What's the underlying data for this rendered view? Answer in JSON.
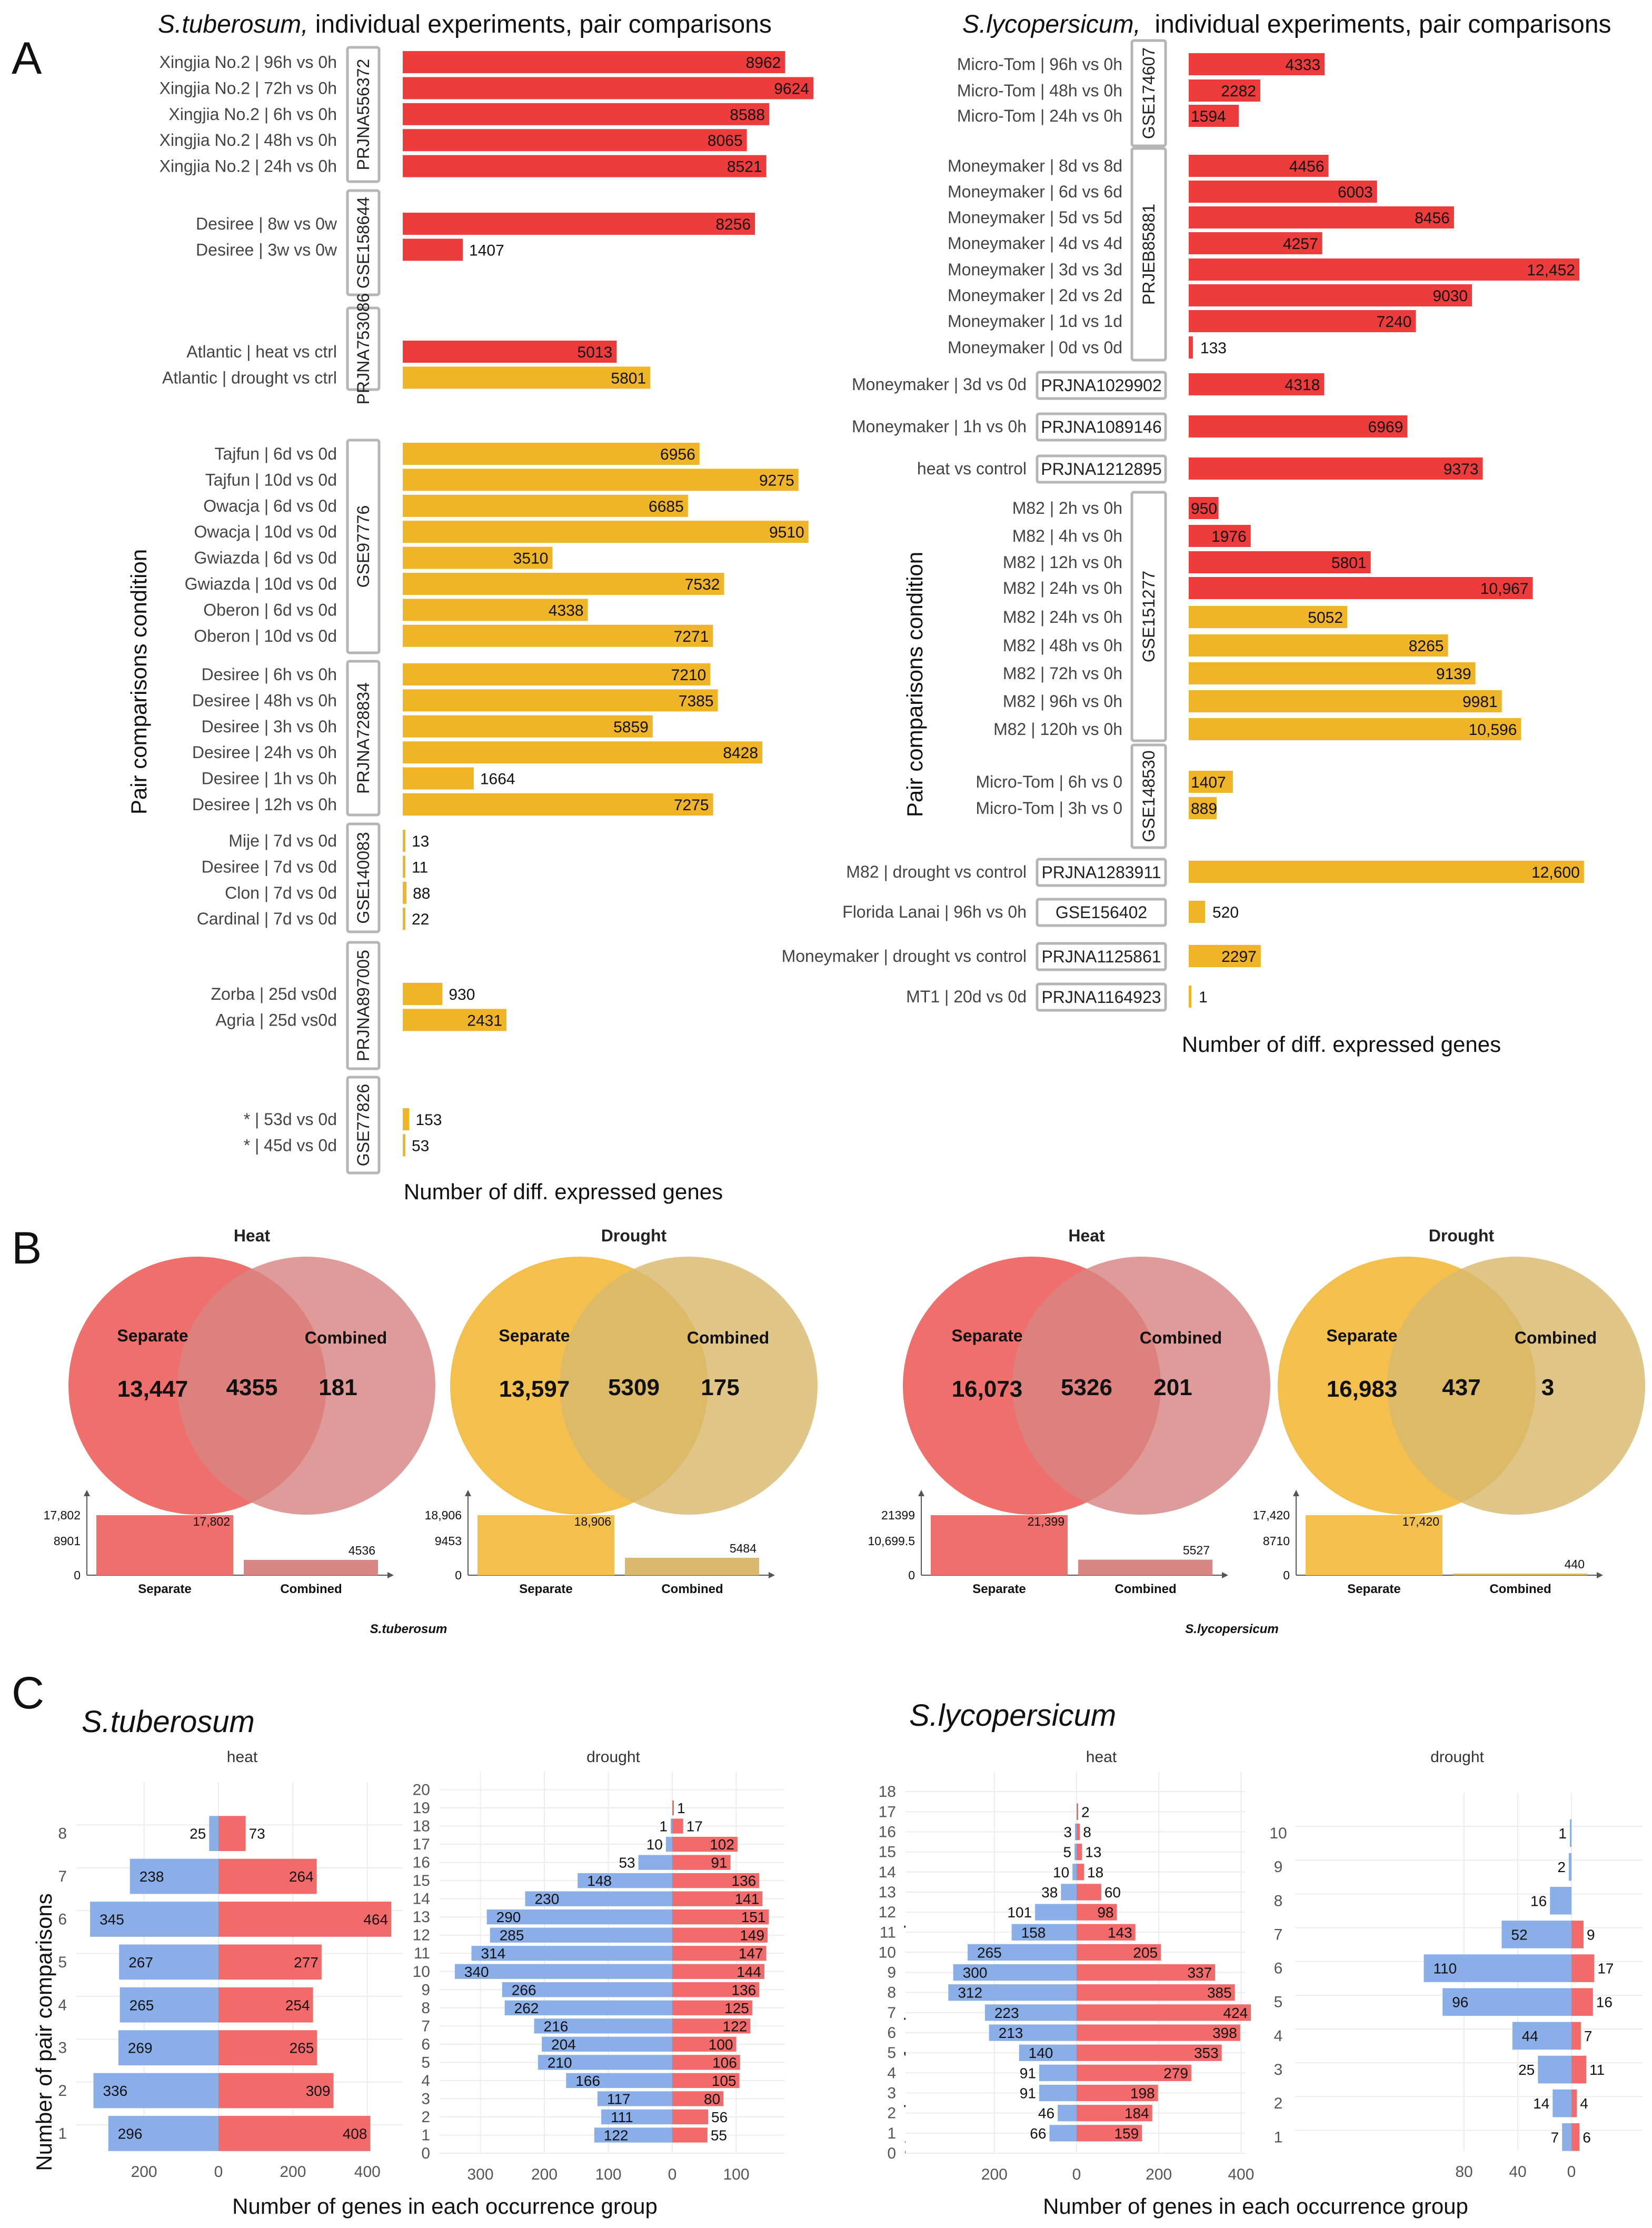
{
  "panels": {
    "A": "A",
    "B": "B",
    "C": "C"
  },
  "panelA": {
    "left": {
      "title_species": "S.tuberosum,",
      "title_rest": " individual experiments, pair comparisons",
      "xlabel": "Number of diff. expressed genes",
      "ylabel": "Pair comparisons condition",
      "groups": [
        {
          "accession": "PRJNA556372",
          "rows": [
            {
              "label": "Xingjia No.2 | 96h vs 0h",
              "value": 8962,
              "stress": "heat"
            },
            {
              "label": "Xingjia No.2 | 72h vs 0h",
              "value": 9624,
              "stress": "heat"
            },
            {
              "label": "Xingjia No.2 | 6h vs 0h",
              "value": 8588,
              "stress": "heat"
            },
            {
              "label": "Xingjia No.2 | 48h vs 0h",
              "value": 8065,
              "stress": "heat"
            },
            {
              "label": "Xingjia No.2 | 24h vs 0h",
              "value": 8521,
              "stress": "heat"
            }
          ]
        },
        {
          "accession": "GSE158644",
          "rows": [
            {
              "label": "Desiree | 8w vs 0w",
              "value": 8256,
              "stress": "heat"
            },
            {
              "label": "Desiree | 3w vs 0w",
              "value": 1407,
              "stress": "heat"
            }
          ]
        },
        {
          "accession": "PRJNA753086",
          "rows": [
            {
              "label": "Atlantic | heat vs ctrl",
              "value": 5013,
              "stress": "heat"
            },
            {
              "label": "Atlantic | drought vs ctrl",
              "value": 5801,
              "stress": "drought"
            }
          ]
        },
        {
          "accession": "GSE97776",
          "rows": [
            {
              "label": "Tajfun | 6d vs 0d",
              "value": 6956,
              "stress": "drought"
            },
            {
              "label": "Tajfun | 10d vs 0d",
              "value": 9275,
              "stress": "drought"
            },
            {
              "label": "Owacja | 6d vs 0d",
              "value": 6685,
              "stress": "drought"
            },
            {
              "label": "Owacja | 10d vs 0d",
              "value": 9510,
              "stress": "drought"
            },
            {
              "label": "Gwiazda | 6d vs 0d",
              "value": 3510,
              "stress": "drought"
            },
            {
              "label": "Gwiazda | 10d vs 0d",
              "value": 7532,
              "stress": "drought"
            },
            {
              "label": "Oberon | 6d vs 0d",
              "value": 4338,
              "stress": "drought"
            },
            {
              "label": "Oberon | 10d vs 0d",
              "value": 7271,
              "stress": "drought"
            }
          ]
        },
        {
          "accession": "PRJNA728834",
          "rows": [
            {
              "label": "Desiree | 6h vs 0h",
              "value": 7210,
              "stress": "drought"
            },
            {
              "label": "Desiree | 48h vs 0h",
              "value": 7385,
              "stress": "drought"
            },
            {
              "label": "Desiree | 3h vs 0h",
              "value": 5859,
              "stress": "drought"
            },
            {
              "label": "Desiree | 24h vs 0h",
              "value": 8428,
              "stress": "drought"
            },
            {
              "label": "Desiree | 1h vs 0h",
              "value": 1664,
              "stress": "drought"
            },
            {
              "label": "Desiree | 12h vs 0h",
              "value": 7275,
              "stress": "drought"
            }
          ]
        },
        {
          "accession": "GSE140083",
          "rows": [
            {
              "label": "Mije | 7d vs 0d",
              "value": 13,
              "stress": "drought"
            },
            {
              "label": "Desiree | 7d vs 0d",
              "value": 11,
              "stress": "drought"
            },
            {
              "label": "Clon | 7d vs 0d",
              "value": 88,
              "stress": "drought"
            },
            {
              "label": "Cardinal | 7d vs 0d",
              "value": 22,
              "stress": "drought"
            }
          ]
        },
        {
          "accession": "PRJNA897005",
          "rows": [
            {
              "label": "Zorba | 25d vs0d",
              "value": 930,
              "stress": "drought"
            },
            {
              "label": "Agria | 25d vs0d",
              "value": 2431,
              "stress": "drought"
            }
          ]
        },
        {
          "accession": "GSE77826",
          "rows": [
            {
              "label": "* | 53d vs 0d",
              "value": 153,
              "stress": "drought"
            },
            {
              "label": "* | 45d vs 0d",
              "value": 53,
              "stress": "drought"
            }
          ]
        }
      ]
    },
    "right": {
      "title_species": "S.lycopersicum,",
      "title_rest": "  individual experiments, pair comparisons",
      "xlabel": "Number of diff. expressed genes",
      "ylabel": "Pair comparisons condition",
      "groups": [
        {
          "accession": "GSE174607",
          "rows": [
            {
              "label": "Micro-Tom | 96h vs 0h",
              "value": 4333,
              "stress": "heat"
            },
            {
              "label": "Micro-Tom | 48h vs 0h",
              "value": 2282,
              "stress": "heat"
            },
            {
              "label": "Micro-Tom | 24h vs 0h",
              "value": 1594,
              "stress": "heat"
            }
          ]
        },
        {
          "accession": "PRJEB85881",
          "rows": [
            {
              "label": "Moneymaker | 8d vs 8d",
              "value": 4456,
              "stress": "heat"
            },
            {
              "label": "Moneymaker | 6d vs 6d",
              "value": 6003,
              "stress": "heat"
            },
            {
              "label": "Moneymaker | 5d vs 5d",
              "value": 8456,
              "stress": "heat"
            },
            {
              "label": "Moneymaker | 4d vs 4d",
              "value": 4257,
              "stress": "heat"
            },
            {
              "label": "Moneymaker | 3d vs 3d",
              "value": 12452,
              "display": "12,452",
              "stress": "heat"
            },
            {
              "label": "Moneymaker | 2d vs 2d",
              "value": 9030,
              "stress": "heat"
            },
            {
              "label": "Moneymaker | 1d vs 1d",
              "value": 7240,
              "stress": "heat"
            },
            {
              "label": "Moneymaker | 0d vs 0d",
              "value": 133,
              "stress": "heat"
            }
          ]
        },
        {
          "accession": "PRJNA1029902",
          "rows": [
            {
              "label": "Moneymaker | 3d vs 0d",
              "value": 4318,
              "stress": "heat"
            }
          ]
        },
        {
          "accession": "PRJNA1089146",
          "rows": [
            {
              "label": "Moneymaker | 1h vs 0h",
              "value": 6969,
              "stress": "heat"
            }
          ]
        },
        {
          "accession": "PRJNA1212895",
          "rows": [
            {
              "label": "heat vs control",
              "value": 9373,
              "stress": "heat"
            }
          ]
        },
        {
          "accession": "GSE151277",
          "rows": [
            {
              "label": "M82 | 2h vs 0h",
              "value": 950,
              "stress": "heat"
            },
            {
              "label": "M82 | 4h vs 0h",
              "value": 1976,
              "stress": "heat"
            },
            {
              "label": "M82 | 12h vs 0h",
              "value": 5801,
              "stress": "heat"
            },
            {
              "label": "M82 | 24h vs 0h",
              "value": 10967,
              "display": "10,967",
              "stress": "heat"
            },
            {
              "label": "M82 | 24h vs 0h",
              "value": 5052,
              "stress": "drought"
            },
            {
              "label": "M82 | 48h vs 0h",
              "value": 8265,
              "stress": "drought"
            },
            {
              "label": "M82 | 72h vs 0h",
              "value": 9139,
              "stress": "drought"
            },
            {
              "label": "M82 | 96h vs 0h",
              "value": 9981,
              "stress": "drought"
            },
            {
              "label": "M82 | 120h vs 0h",
              "value": 10596,
              "display": "10,596",
              "stress": "drought"
            }
          ]
        },
        {
          "accession": "GSE148530",
          "rows": [
            {
              "label": "Micro-Tom | 6h vs 0",
              "value": 1407,
              "stress": "drought"
            },
            {
              "label": "Micro-Tom | 3h vs 0",
              "value": 889,
              "stress": "drought"
            }
          ]
        },
        {
          "accession": "PRJNA1283911",
          "rows": [
            {
              "label": "M82 | drought vs control",
              "value": 12600,
              "display": "12,600",
              "stress": "drought"
            }
          ]
        },
        {
          "accession": "GSE156402",
          "rows": [
            {
              "label": "Florida Lanai | 96h vs 0h",
              "value": 520,
              "stress": "drought"
            }
          ]
        },
        {
          "accession": "PRJNA1125861",
          "rows": [
            {
              "label": "Moneymaker | drought vs control",
              "value": 2297,
              "stress": "drought"
            }
          ]
        },
        {
          "accession": "PRJNA1164923",
          "rows": [
            {
              "label": "MT1 | 20d vs 0d",
              "value": 1,
              "stress": "drought"
            }
          ]
        }
      ]
    }
  },
  "panelB": {
    "venns": [
      {
        "title": "Heat",
        "color": "heat",
        "separate_label": "Separate",
        "combined_label": "Combined",
        "separate": "13,447",
        "shared": "4355",
        "combined": "181",
        "bar": {
          "axis_ticks": [
            "17,802",
            "8901",
            "0"
          ],
          "separate": 17802,
          "separate_label": "17,802",
          "combined": 4536,
          "combined_label": "4536",
          "max": 17802,
          "xlabels": [
            "Separate",
            "Combined"
          ]
        }
      },
      {
        "title": "Drought",
        "color": "drought",
        "separate_label": "Separate",
        "combined_label": "Combined",
        "separate": "13,597",
        "shared": "5309",
        "combined": "175",
        "bar": {
          "axis_ticks": [
            "18,906",
            "9453",
            "0"
          ],
          "separate": 18906,
          "separate_label": "18,906",
          "combined": 5484,
          "combined_label": "5484",
          "max": 18906,
          "xlabels": [
            "Separate",
            "Combined"
          ]
        }
      },
      {
        "title": "Heat",
        "color": "heat",
        "separate_label": "Separate",
        "combined_label": "Combined",
        "separate": "16,073",
        "shared": "5326",
        "combined": "201",
        "bar": {
          "axis_ticks": [
            "21399",
            "10,699.5",
            "0"
          ],
          "separate": 21399,
          "separate_label": "21,399",
          "combined": 5527,
          "combined_label": "5527",
          "max": 21399,
          "xlabels": [
            "Separate",
            "Combined"
          ]
        }
      },
      {
        "title": "Drought",
        "color": "drought",
        "separate_label": "Separate",
        "combined_label": "Combined",
        "separate": "16,983",
        "shared": "437",
        "combined": "3",
        "bar": {
          "axis_ticks": [
            "17,420",
            "8710",
            "0"
          ],
          "separate": 17420,
          "separate_label": "17,420",
          "combined": 440,
          "combined_label": "440",
          "max": 17420,
          "xlabels": [
            "Separate",
            "Combined"
          ]
        }
      }
    ],
    "species": [
      "S.tuberosum",
      "S.lycopersicum"
    ]
  },
  "panelC": {
    "species": [
      "S.tuberosum",
      "S.lycopersicum"
    ],
    "facets": [
      "heat",
      "drought",
      "heat",
      "drought"
    ],
    "ylabel": "Number of pair comparisons",
    "xlabel": "Number of genes in each occurrence group",
    "plots": [
      {
        "facet": "heat",
        "ymax": 8,
        "xmax_neg": 340,
        "xmax_pos": 470,
        "xticks": [
          "200",
          "0",
          "200",
          "400"
        ],
        "xtick_vals": [
          -200,
          0,
          200,
          400
        ],
        "ytick_step": 1,
        "rows": [
          [
            1,
            296,
            408
          ],
          [
            2,
            336,
            309
          ],
          [
            3,
            269,
            265
          ],
          [
            4,
            265,
            254
          ],
          [
            5,
            267,
            277
          ],
          [
            6,
            345,
            464
          ],
          [
            7,
            238,
            264
          ],
          [
            8,
            25,
            73
          ]
        ]
      },
      {
        "facet": "drought",
        "ymax": 20,
        "xmax_neg": 350,
        "xmax_pos": 170,
        "xticks": [
          "300",
          "200",
          "100",
          "0",
          "100"
        ],
        "xtick_vals": [
          -300,
          -200,
          -100,
          0,
          100
        ],
        "ytick_step": 1,
        "rows": [
          [
            1,
            122,
            55
          ],
          [
            2,
            111,
            56
          ],
          [
            3,
            117,
            80
          ],
          [
            4,
            166,
            105
          ],
          [
            5,
            210,
            106
          ],
          [
            6,
            204,
            100
          ],
          [
            7,
            216,
            122
          ],
          [
            8,
            262,
            125
          ],
          [
            9,
            266,
            136
          ],
          [
            10,
            340,
            144
          ],
          [
            11,
            314,
            147
          ],
          [
            12,
            285,
            149
          ],
          [
            13,
            290,
            151
          ],
          [
            14,
            230,
            141
          ],
          [
            15,
            148,
            136
          ],
          [
            16,
            53,
            91
          ],
          [
            17,
            10,
            102
          ],
          [
            18,
            1,
            17
          ],
          [
            19,
            null,
            1
          ]
        ]
      },
      {
        "facet": "heat",
        "ymax": 18,
        "xmax_neg": 320,
        "xmax_pos": 430,
        "xticks": [
          "200",
          "0",
          "200",
          "400"
        ],
        "xtick_vals": [
          -200,
          0,
          200,
          400
        ],
        "ytick_step": 1,
        "rows": [
          [
            1,
            66,
            159
          ],
          [
            2,
            46,
            184
          ],
          [
            3,
            91,
            198
          ],
          [
            4,
            91,
            279
          ],
          [
            5,
            140,
            353
          ],
          [
            6,
            213,
            398
          ],
          [
            7,
            223,
            424
          ],
          [
            8,
            312,
            385
          ],
          [
            9,
            300,
            337
          ],
          [
            10,
            265,
            205
          ],
          [
            11,
            158,
            143
          ],
          [
            12,
            101,
            98
          ],
          [
            13,
            38,
            60
          ],
          [
            14,
            10,
            18
          ],
          [
            15,
            5,
            13
          ],
          [
            16,
            3,
            8
          ],
          [
            17,
            null,
            2
          ]
        ]
      },
      {
        "facet": "drought",
        "ymax": 10,
        "xmax_neg": 115,
        "xmax_pos": 20,
        "xticks": [
          "80",
          "40",
          "0"
        ],
        "xtick_vals": [
          -80,
          -40,
          0
        ],
        "ytick_step": 1,
        "rows": [
          [
            1,
            7,
            6
          ],
          [
            2,
            14,
            4
          ],
          [
            3,
            25,
            11
          ],
          [
            4,
            44,
            7
          ],
          [
            5,
            96,
            16
          ],
          [
            6,
            110,
            17
          ],
          [
            7,
            52,
            9
          ],
          [
            8,
            16,
            null
          ],
          [
            9,
            2,
            null
          ],
          [
            10,
            1,
            null
          ]
        ]
      }
    ]
  },
  "colors": {
    "heat": "#ee3b3b",
    "drought": "#f0b429",
    "heat_venn": "#ef6f6c",
    "heat_venn2": "#d88583",
    "drought_venn": "#f3c04d",
    "drought_venn2": "#d8b86d",
    "pyr_neg": "#8aaee8",
    "pyr_pos": "#f26a6a"
  }
}
